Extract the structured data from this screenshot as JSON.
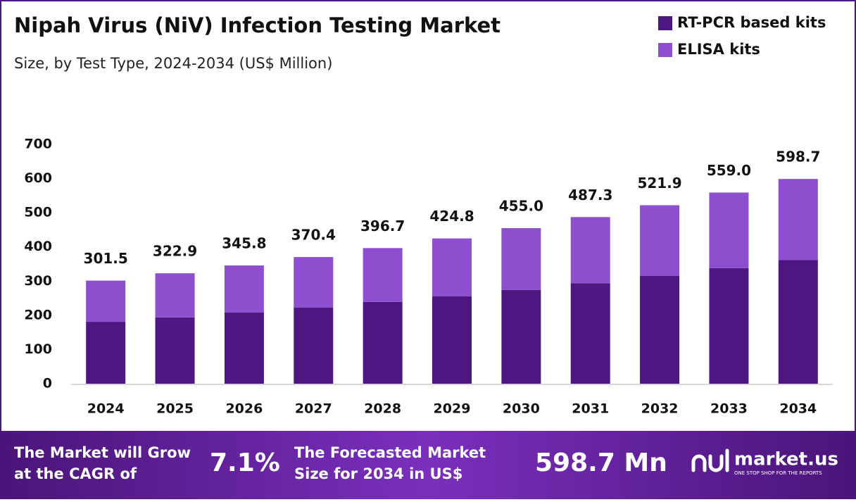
{
  "chart_data": {
    "type": "stacked_bar",
    "title": "Nipah Virus (NiV) Infection Testing Market",
    "subtitle": "Size, by Test Type, 2024-2034 (US$ Million)",
    "categories": [
      "2024",
      "2025",
      "2026",
      "2027",
      "2028",
      "2029",
      "2030",
      "2031",
      "2032",
      "2033",
      "2034"
    ],
    "series": [
      {
        "name": "RT-PCR based kits",
        "color": "#4e1680",
        "values": [
          181,
          194,
          208,
          223,
          239,
          256,
          274,
          294,
          315,
          338,
          362
        ]
      },
      {
        "name": "ELISA kits",
        "color": "#8e4fcf",
        "values": [
          120.5,
          128.9,
          137.8,
          147.4,
          157.7,
          168.8,
          181.0,
          193.3,
          206.9,
          221.0,
          236.7
        ]
      }
    ],
    "totals": [
      301.5,
      322.9,
      345.8,
      370.4,
      396.7,
      424.8,
      455.0,
      487.3,
      521.9,
      559.0,
      598.7
    ],
    "total_labels": [
      "301.5",
      "322.9",
      "345.8",
      "370.4",
      "396.7",
      "424.8",
      "455.0",
      "487.3",
      "521.9",
      "559.0",
      "598.7"
    ],
    "ylim": [
      0,
      700
    ],
    "yticks": [
      0,
      100,
      200,
      300,
      400,
      500,
      600,
      700
    ],
    "grid": false,
    "legend": "top-right"
  },
  "footer": {
    "cagr_text": [
      "The Market will Grow",
      "at the CAGR of"
    ],
    "cagr_value": "7.1%",
    "forecast_text": [
      "The Forecasted Market",
      "Size for 2034 in US$"
    ],
    "forecast_value": "598.7 Mn",
    "brand": "market.us",
    "tagline": "ONE STOP SHOP FOR THE REPORTS"
  }
}
